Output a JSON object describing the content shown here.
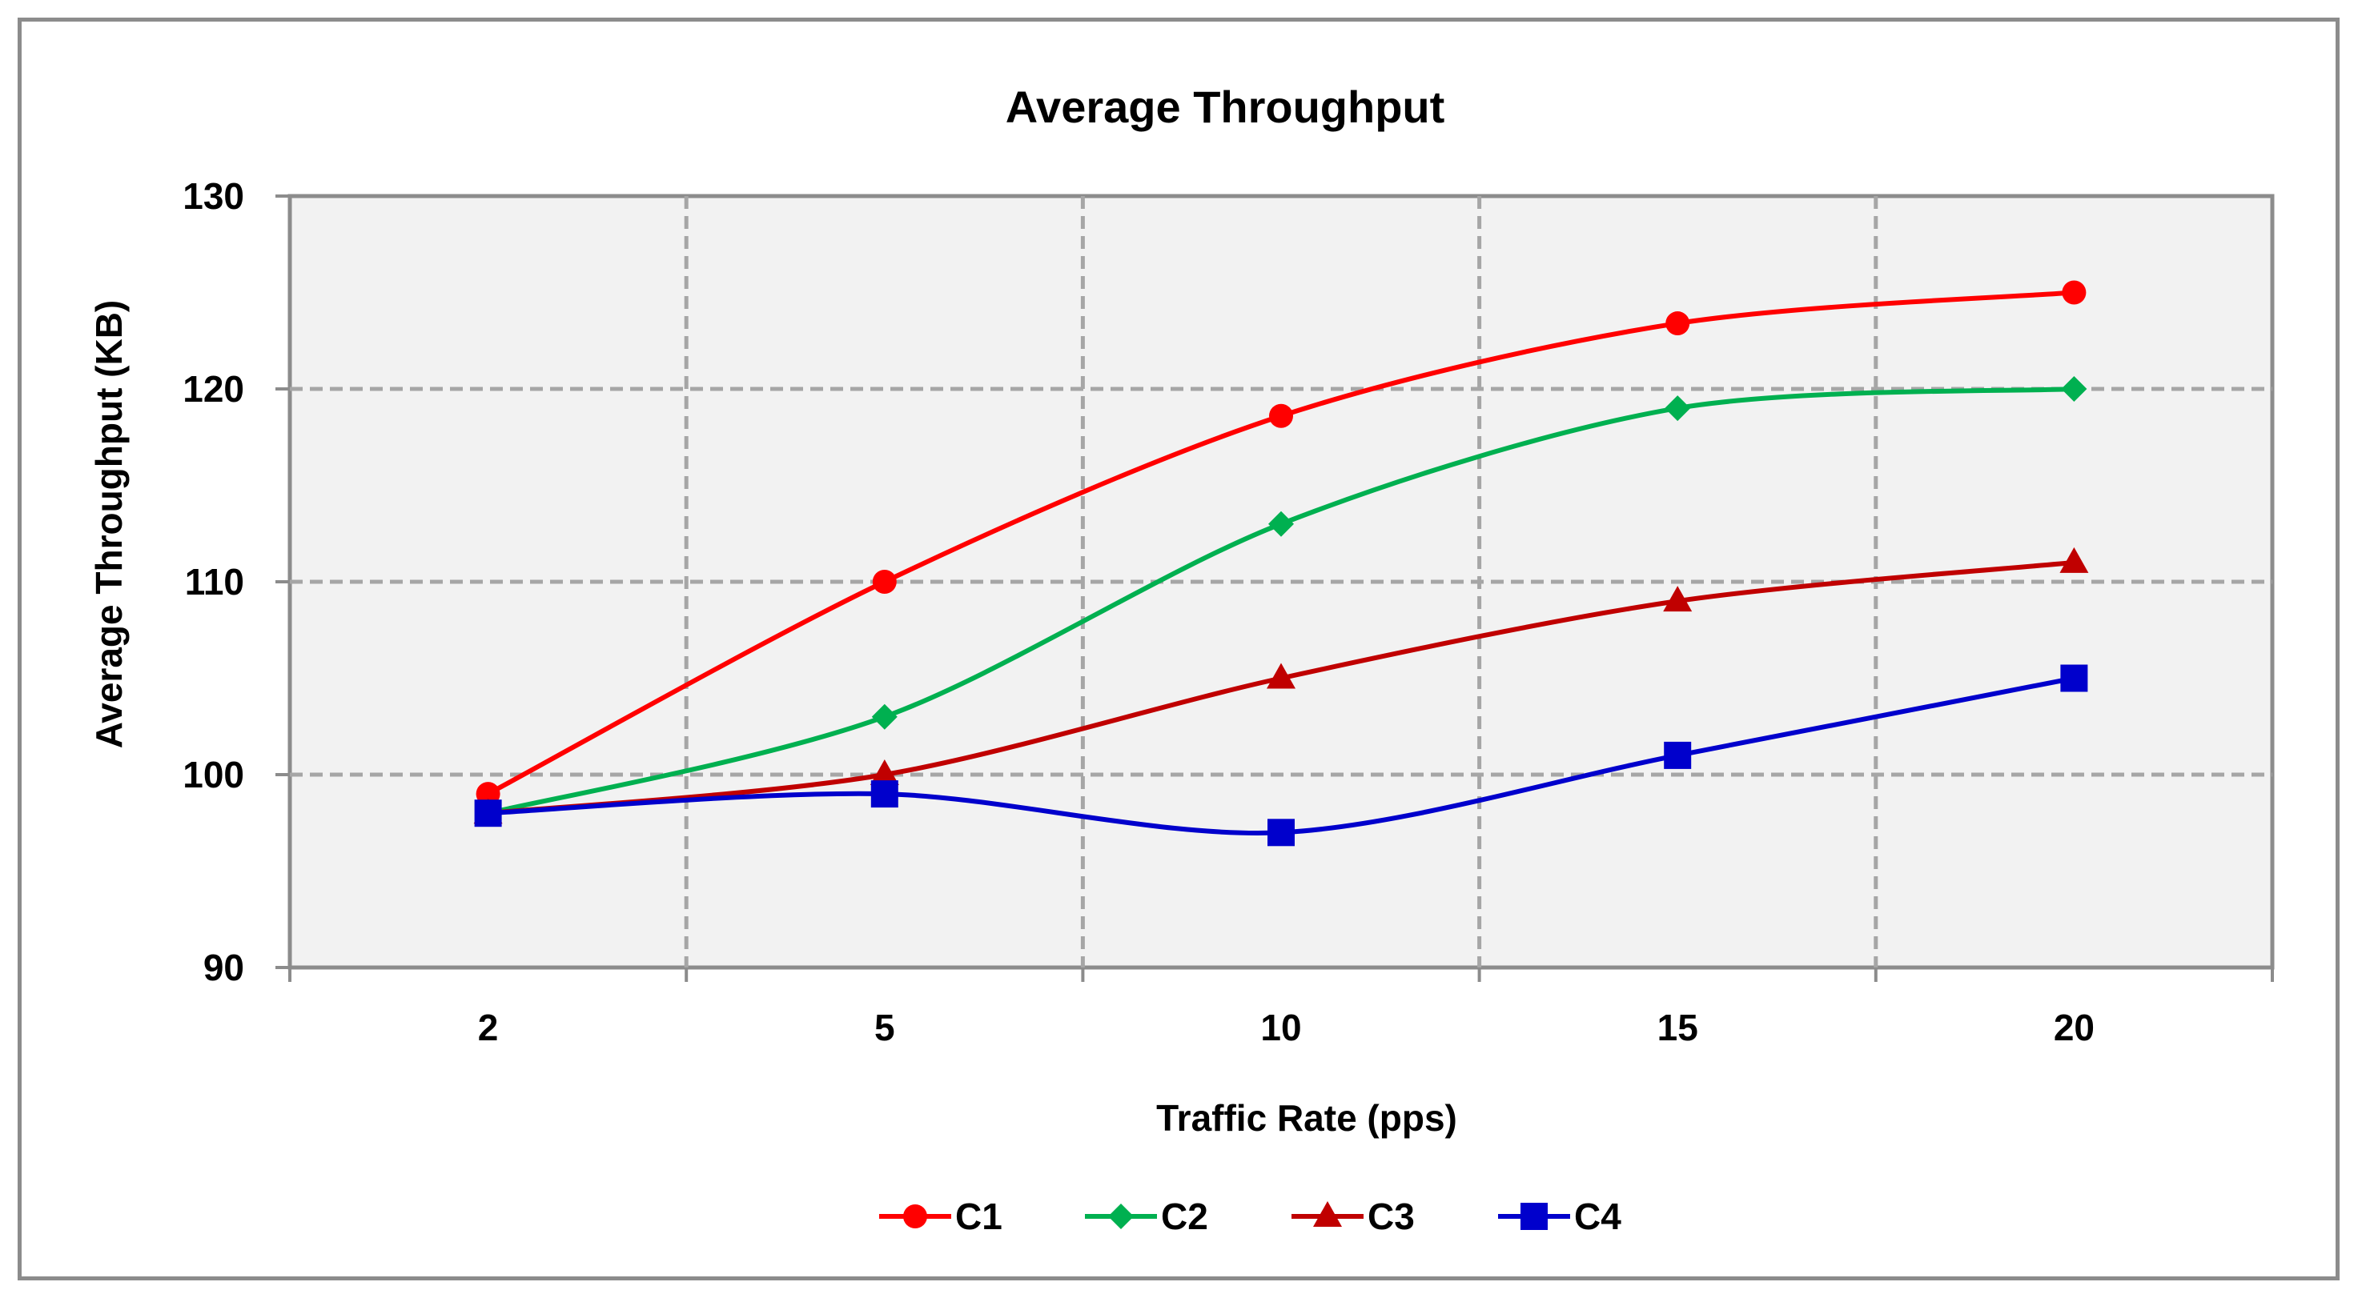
{
  "chart_data": {
    "type": "line",
    "title": "Average Throughput",
    "xlabel": "Traffic Rate (pps)",
    "ylabel": "Average Throughput (KB)",
    "categories": [
      "2",
      "5",
      "10",
      "15",
      "20"
    ],
    "ylim": [
      90,
      130
    ],
    "yticks": [
      90,
      100,
      110,
      120,
      130
    ],
    "grid": true,
    "legend_position": "bottom",
    "series": [
      {
        "name": "C1",
        "color": "#ff0000",
        "marker": "circle",
        "values": [
          99,
          110,
          118.6,
          123.4,
          125
        ]
      },
      {
        "name": "C2",
        "color": "#00b050",
        "marker": "diamond",
        "values": [
          98,
          103,
          113,
          119,
          120
        ]
      },
      {
        "name": "C3",
        "color": "#c00000",
        "marker": "triangle",
        "values": [
          98,
          100,
          105,
          109,
          111
        ]
      },
      {
        "name": "C4",
        "color": "#0000cc",
        "marker": "square",
        "values": [
          98,
          99,
          97,
          101,
          105
        ]
      }
    ]
  }
}
